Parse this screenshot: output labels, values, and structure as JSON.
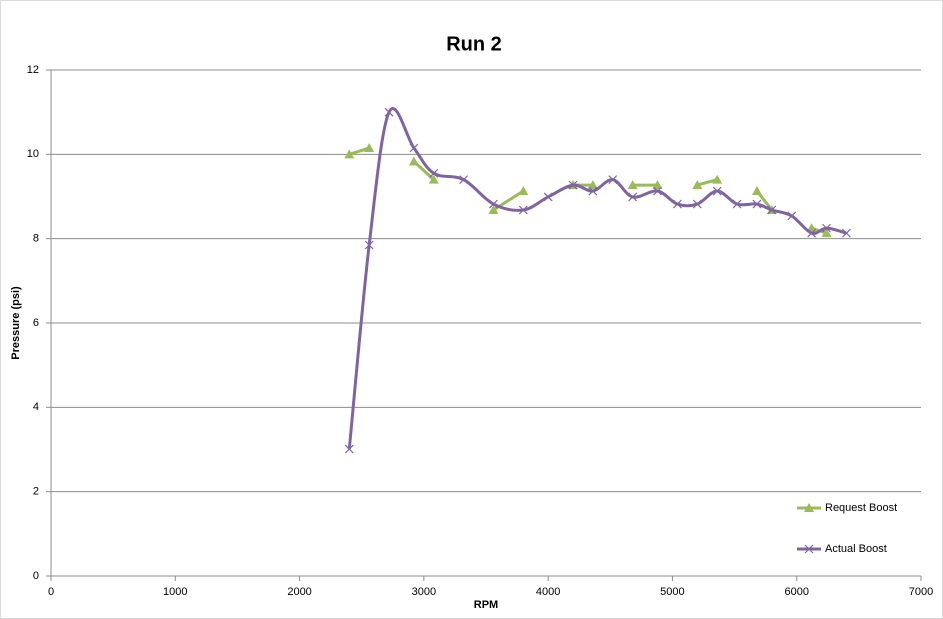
{
  "chart_data": {
    "type": "line",
    "title": "Run 2",
    "x_label": "RPM",
    "y_label": "Pressure (psi)",
    "xlim": [
      0,
      7000
    ],
    "xticks": [
      0,
      1000,
      2000,
      3000,
      4000,
      5000,
      6000,
      7000
    ],
    "ylim": [
      0,
      12
    ],
    "yticks": [
      0,
      2,
      4,
      6,
      8,
      10,
      12
    ],
    "grid": true,
    "legend": "lower right",
    "series": [
      {
        "name": "Request Boost",
        "color": "#9bbb59",
        "marker": "triangle",
        "smooth": false,
        "x": [
          2400,
          2560,
          null,
          2920,
          3080,
          null,
          3560,
          3800,
          null,
          4200,
          4360,
          null,
          4680,
          4880,
          null,
          5200,
          5360,
          null,
          5680,
          5800,
          null,
          6120,
          6240
        ],
        "values": [
          10.0,
          10.15,
          null,
          9.83,
          9.4,
          null,
          8.68,
          9.13,
          null,
          9.27,
          9.27,
          null,
          9.27,
          9.27,
          null,
          9.27,
          9.4,
          null,
          9.13,
          8.68,
          null,
          8.25,
          8.13
        ]
      },
      {
        "name": "Actual Boost",
        "color": "#8064a2",
        "marker": "x",
        "smooth": true,
        "x": [
          2400,
          2560,
          2720,
          2920,
          3080,
          3320,
          3560,
          3800,
          4000,
          4200,
          4360,
          4520,
          4680,
          4880,
          5040,
          5200,
          5360,
          5520,
          5680,
          5800,
          5960,
          6120,
          6240,
          6400
        ],
        "values": [
          3.01,
          7.85,
          11.0,
          10.15,
          9.55,
          9.4,
          8.82,
          8.68,
          8.99,
          9.27,
          9.13,
          9.4,
          8.99,
          9.13,
          8.82,
          8.82,
          9.13,
          8.82,
          8.82,
          8.68,
          8.54,
          8.13,
          8.25,
          8.13
        ]
      }
    ]
  }
}
